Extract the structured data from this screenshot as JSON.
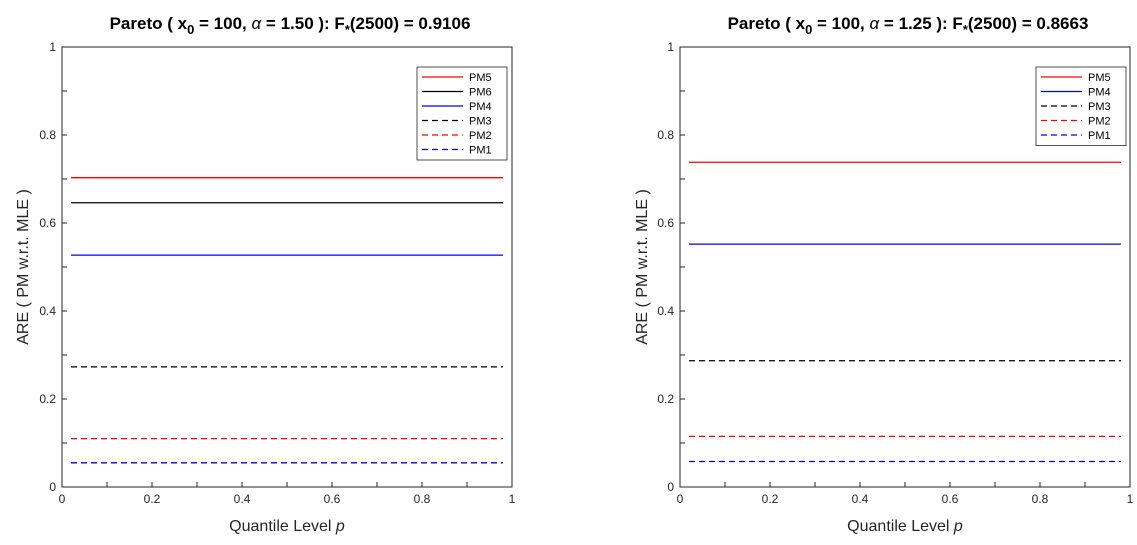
{
  "chart_data": [
    {
      "type": "line",
      "title": {
        "prefix": "Pareto ( x",
        "sub0": "0",
        "mid": " = 100, ",
        "alpha": "α",
        "mid2": " = 1.50 ):  F",
        "substar": "*",
        "suffix": "(2500) = 0.9106"
      },
      "xlabel": "Quantile Level",
      "xlabel_var": "p",
      "ylabel": "ARE  ( PM w.r.t. MLE )",
      "xlim": [
        0,
        1
      ],
      "ylim": [
        0,
        1
      ],
      "xticks": [
        0,
        0.2,
        0.4,
        0.6,
        0.8,
        1
      ],
      "xtick_labels": [
        "0",
        "0.2",
        "0.4",
        "0.6",
        "0.8",
        "1"
      ],
      "yticks": [
        0,
        0.2,
        0.4,
        0.6,
        0.8,
        1
      ],
      "ytick_labels": [
        "0",
        "0.2",
        "0.4",
        "0.6",
        "0.8",
        "1"
      ],
      "x_range": [
        0.02,
        0.98
      ],
      "legend_position": "top-right",
      "series": [
        {
          "name": "PM5",
          "value": 0.703,
          "color": "#ff0000",
          "dash": "solid"
        },
        {
          "name": "PM6",
          "value": 0.646,
          "color": "#000000",
          "dash": "solid"
        },
        {
          "name": "PM4",
          "value": 0.527,
          "color": "#0000ff",
          "dash": "solid"
        },
        {
          "name": "PM3",
          "value": 0.273,
          "color": "#000000",
          "dash": "dashed"
        },
        {
          "name": "PM2",
          "value": 0.11,
          "color": "#ff0000",
          "dash": "dashed"
        },
        {
          "name": "PM1",
          "value": 0.055,
          "color": "#0000ff",
          "dash": "dashed"
        }
      ]
    },
    {
      "type": "line",
      "title": {
        "prefix": "Pareto ( x",
        "sub0": "0",
        "mid": " = 100, ",
        "alpha": "α",
        "mid2": " = 1.25 ):  F",
        "substar": "*",
        "suffix": "(2500) = 0.8663"
      },
      "xlabel": "Quantile Level",
      "xlabel_var": "p",
      "ylabel": "ARE  ( PM w.r.t. MLE )",
      "xlim": [
        0,
        1
      ],
      "ylim": [
        0,
        1
      ],
      "xticks": [
        0,
        0.2,
        0.4,
        0.6,
        0.8,
        1
      ],
      "xtick_labels": [
        "0",
        "0.2",
        "0.4",
        "0.6",
        "0.8",
        "1"
      ],
      "yticks": [
        0,
        0.2,
        0.4,
        0.6,
        0.8,
        1
      ],
      "ytick_labels": [
        "0",
        "0.2",
        "0.4",
        "0.6",
        "0.8",
        "1"
      ],
      "x_range": [
        0.02,
        0.98
      ],
      "legend_position": "top-right",
      "series": [
        {
          "name": "PM5",
          "value": 0.738,
          "color": "#ff0000",
          "dash": "solid"
        },
        {
          "name": "PM4",
          "value": 0.552,
          "color": "#0000ff",
          "dash": "solid"
        },
        {
          "name": "PM3",
          "value": 0.287,
          "color": "#000000",
          "dash": "dashed"
        },
        {
          "name": "PM2",
          "value": 0.115,
          "color": "#ff0000",
          "dash": "dashed"
        },
        {
          "name": "PM1",
          "value": 0.058,
          "color": "#0000ff",
          "dash": "dashed"
        }
      ]
    }
  ]
}
